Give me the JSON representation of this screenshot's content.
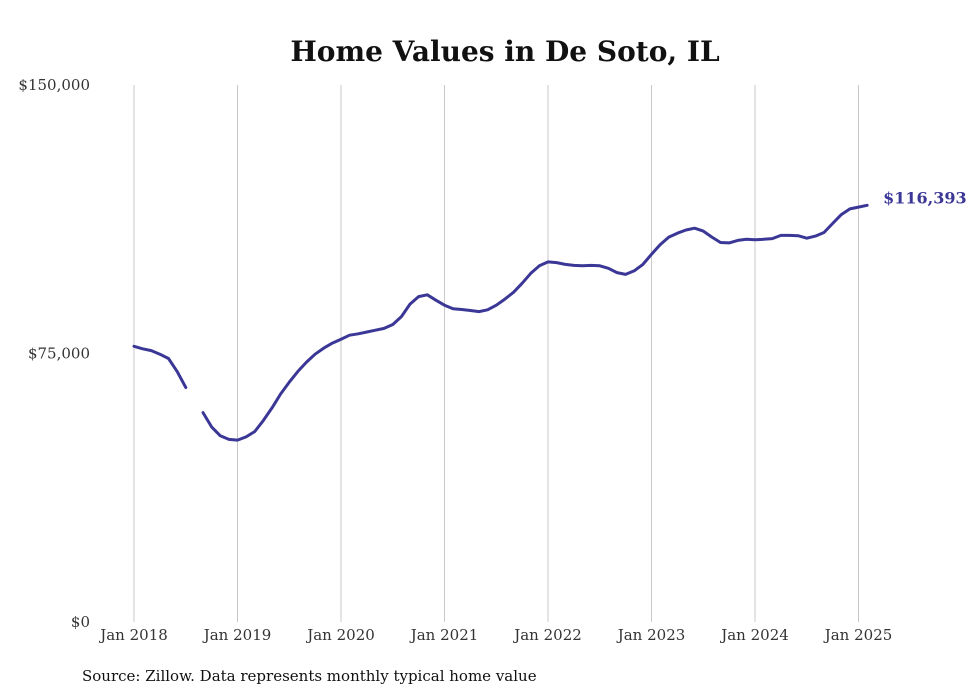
{
  "source_note": "Source: Zillow. Data represents monthly typical home value",
  "colors": {
    "line": "#3b3796",
    "grid": "#c8c8c8"
  },
  "chart_data": {
    "type": "line",
    "title": "Home Values in De Soto, IL",
    "xlabel": "",
    "ylabel": "",
    "ylim": [
      0,
      150000
    ],
    "y_ticks": [
      0,
      75000,
      150000
    ],
    "y_tick_labels": [
      "$0",
      "$75,000",
      "$150,000"
    ],
    "x_ticks": [
      "Jan 2018",
      "Jan 2019",
      "Jan 2020",
      "Jan 2021",
      "Jan 2022",
      "Jan 2023",
      "Jan 2024",
      "Jan 2025"
    ],
    "grid": "vertical",
    "end_label": "$116,393",
    "series": [
      {
        "values": [
          [
            "2018-01",
            77000
          ],
          [
            "2018-02",
            76300
          ],
          [
            "2018-03",
            75800
          ],
          [
            "2018-04",
            74800
          ],
          [
            "2018-05",
            73600
          ],
          [
            "2018-06",
            70000
          ],
          [
            "2018-07",
            65500
          ],
          [
            "2018-08",
            null
          ],
          [
            "2018-09",
            58500
          ],
          [
            "2018-10",
            54500
          ],
          [
            "2018-11",
            52000
          ],
          [
            "2018-12",
            51000
          ],
          [
            "2019-01",
            50800
          ],
          [
            "2019-02",
            51700
          ],
          [
            "2019-03",
            53200
          ],
          [
            "2019-04",
            56300
          ],
          [
            "2019-05",
            59800
          ],
          [
            "2019-06",
            63700
          ],
          [
            "2019-07",
            67000
          ],
          [
            "2019-08",
            70000
          ],
          [
            "2019-09",
            72600
          ],
          [
            "2019-10",
            74800
          ],
          [
            "2019-11",
            76500
          ],
          [
            "2019-12",
            77900
          ],
          [
            "2020-01",
            79000
          ],
          [
            "2020-02",
            80100
          ],
          [
            "2020-03",
            80500
          ],
          [
            "2020-04",
            81000
          ],
          [
            "2020-05",
            81500
          ],
          [
            "2020-06",
            82000
          ],
          [
            "2020-07",
            83100
          ],
          [
            "2020-08",
            85300
          ],
          [
            "2020-09",
            88800
          ],
          [
            "2020-10",
            90900
          ],
          [
            "2020-11",
            91400
          ],
          [
            "2020-12",
            89900
          ],
          [
            "2021-01",
            88500
          ],
          [
            "2021-02",
            87500
          ],
          [
            "2021-03",
            87300
          ],
          [
            "2021-04",
            87000
          ],
          [
            "2021-05",
            86700
          ],
          [
            "2021-06",
            87200
          ],
          [
            "2021-07",
            88500
          ],
          [
            "2021-08",
            90200
          ],
          [
            "2021-09",
            92100
          ],
          [
            "2021-10",
            94600
          ],
          [
            "2021-11",
            97400
          ],
          [
            "2021-12",
            99500
          ],
          [
            "2022-01",
            100600
          ],
          [
            "2022-02",
            100400
          ],
          [
            "2022-03",
            99900
          ],
          [
            "2022-04",
            99600
          ],
          [
            "2022-05",
            99500
          ],
          [
            "2022-06",
            99600
          ],
          [
            "2022-07",
            99500
          ],
          [
            "2022-08",
            98800
          ],
          [
            "2022-09",
            97600
          ],
          [
            "2022-10",
            97100
          ],
          [
            "2022-11",
            98100
          ],
          [
            "2022-12",
            99900
          ],
          [
            "2023-01",
            102700
          ],
          [
            "2023-02",
            105400
          ],
          [
            "2023-03",
            107500
          ],
          [
            "2023-04",
            108600
          ],
          [
            "2023-05",
            109500
          ],
          [
            "2023-06",
            110000
          ],
          [
            "2023-07",
            109200
          ],
          [
            "2023-08",
            107500
          ],
          [
            "2023-09",
            106000
          ],
          [
            "2023-10",
            105900
          ],
          [
            "2023-11",
            106600
          ],
          [
            "2023-12",
            106900
          ],
          [
            "2024-01",
            106800
          ],
          [
            "2024-02",
            106900
          ],
          [
            "2024-03",
            107100
          ],
          [
            "2024-04",
            108000
          ],
          [
            "2024-05",
            108000
          ],
          [
            "2024-06",
            107900
          ],
          [
            "2024-07",
            107200
          ],
          [
            "2024-08",
            107800
          ],
          [
            "2024-09",
            108800
          ],
          [
            "2024-10",
            111300
          ],
          [
            "2024-11",
            113800
          ],
          [
            "2024-12",
            115400
          ],
          [
            "2025-01",
            115900
          ],
          [
            "2025-02",
            116393
          ]
        ]
      }
    ]
  }
}
